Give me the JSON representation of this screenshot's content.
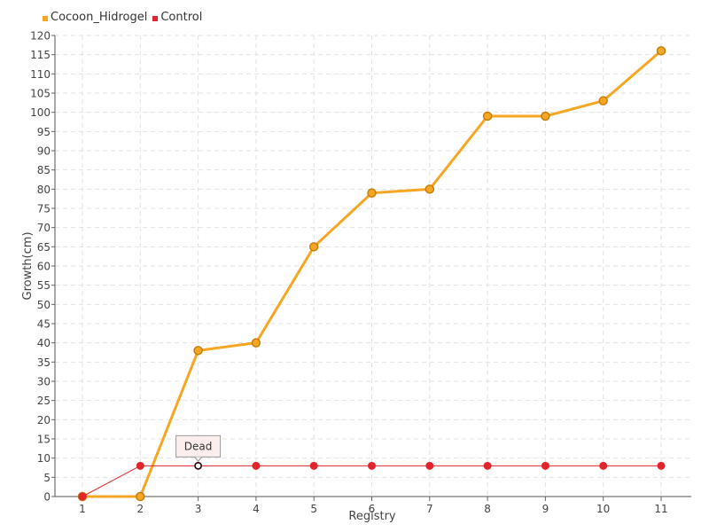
{
  "chart_data": {
    "type": "line",
    "xlabel": "Registry",
    "ylabel": "Growth(cm)",
    "categories": [
      "1",
      "2",
      "3",
      "4",
      "5",
      "6",
      "7",
      "8",
      "9",
      "10",
      "11"
    ],
    "ylim": [
      0,
      120
    ],
    "ytick_step": 5,
    "grid": true,
    "legend_position": "top-left",
    "series": [
      {
        "name": "Cocoon_Hidrogel",
        "color": "#f5a623",
        "values": [
          0,
          0,
          38,
          40,
          65,
          79,
          80,
          99,
          99,
          103,
          116
        ]
      },
      {
        "name": "Control",
        "color": "#e3242b",
        "values": [
          0,
          8,
          8,
          8,
          8,
          8,
          8,
          8,
          8,
          8,
          8
        ]
      }
    ],
    "annotations": [
      {
        "text": "Dead",
        "series": "Control",
        "category": "3"
      }
    ]
  }
}
